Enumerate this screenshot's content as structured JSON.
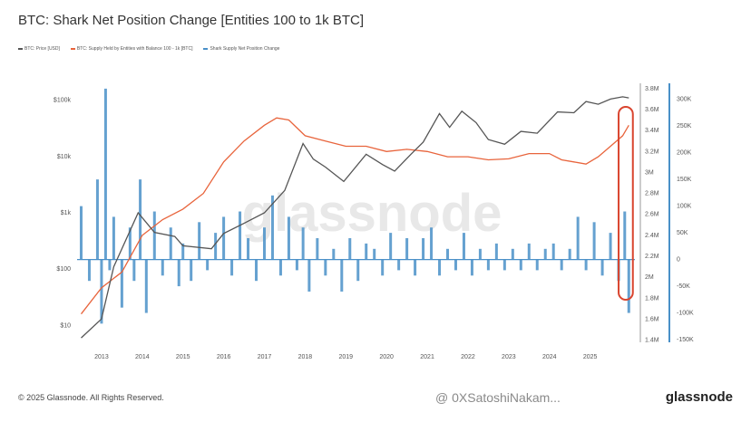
{
  "chart_data": {
    "type": "line",
    "title": "BTC: Shark Net Position Change [Entities 100 to 1k BTC]",
    "watermark": "glassnode",
    "legend": [
      {
        "name": "BTC: Price [USD]",
        "color": "#555555"
      },
      {
        "name": "BTC: Supply Held by Entities with Balance 100 - 1k [BTC]",
        "color": "#e8643c"
      },
      {
        "name": "Shark Supply Net Position Change",
        "color": "#4a90c8"
      }
    ],
    "x_ticks": [
      "2013",
      "2014",
      "2015",
      "2016",
      "2017",
      "2018",
      "2019",
      "2020",
      "2021",
      "2022",
      "2023",
      "2024",
      "2025"
    ],
    "y_left_ticks": [
      "$100k",
      "$10k",
      "$1k",
      "$100",
      "$10"
    ],
    "y_mid_ticks": [
      "3.8M",
      "3.6M",
      "3.4M",
      "3.2M",
      "3M",
      "2.8M",
      "2.6M",
      "2.4M",
      "2.2M",
      "2M",
      "1.8M",
      "1.6M",
      "1.4M"
    ],
    "y_right_ticks": [
      "300K",
      "250K",
      "200K",
      "150K",
      "100K",
      "50K",
      "0",
      "-50K",
      "-100K",
      "-150K"
    ],
    "series": [
      {
        "name": "BTC: Price [USD]",
        "x": [
          2012.5,
          2013.0,
          2013.3,
          2013.9,
          2014.3,
          2014.8,
          2015.0,
          2015.7,
          2016.0,
          2016.5,
          2017.0,
          2017.5,
          2017.95,
          2018.2,
          2018.5,
          2018.95,
          2019.5,
          2019.9,
          2020.2,
          2020.6,
          2020.9,
          2021.3,
          2021.55,
          2021.85,
          2022.2,
          2022.5,
          2022.9,
          2023.3,
          2023.7,
          2024.2,
          2024.6,
          2024.9,
          2025.2,
          2025.5,
          2025.8,
          2025.95
        ],
        "y": [
          6,
          13,
          110,
          1000,
          450,
          380,
          260,
          230,
          430,
          650,
          1000,
          2500,
          17000,
          9000,
          6500,
          3600,
          11000,
          7200,
          5500,
          11000,
          18000,
          58000,
          33000,
          64000,
          40000,
          20000,
          16500,
          28000,
          26000,
          62000,
          60000,
          95000,
          85000,
          105000,
          115000,
          110000
        ]
      },
      {
        "name": "BTC: Supply Held by Entities with Balance 100 - 1k [BTC]",
        "x": [
          2012.5,
          2013.0,
          2013.5,
          2014.0,
          2014.5,
          2015.0,
          2015.5,
          2016.0,
          2016.5,
          2017.0,
          2017.3,
          2017.6,
          2018.0,
          2018.5,
          2019.0,
          2019.5,
          2020.0,
          2020.5,
          2021.0,
          2021.5,
          2022.0,
          2022.5,
          2023.0,
          2023.5,
          2024.0,
          2024.3,
          2024.6,
          2024.9,
          2025.2,
          2025.5,
          2025.8,
          2025.95
        ],
        "y": [
          1.65,
          1.9,
          2.05,
          2.4,
          2.55,
          2.65,
          2.8,
          3.1,
          3.3,
          3.45,
          3.52,
          3.5,
          3.35,
          3.3,
          3.25,
          3.25,
          3.2,
          3.22,
          3.2,
          3.15,
          3.15,
          3.12,
          3.13,
          3.18,
          3.18,
          3.12,
          3.1,
          3.08,
          3.15,
          3.25,
          3.35,
          3.45
        ]
      },
      {
        "name": "Shark Supply Net Position Change",
        "x": [
          2012.5,
          2012.7,
          2012.9,
          2013.0,
          2013.1,
          2013.2,
          2013.3,
          2013.5,
          2013.7,
          2013.8,
          2013.95,
          2014.1,
          2014.3,
          2014.5,
          2014.7,
          2014.9,
          2015.0,
          2015.2,
          2015.4,
          2015.6,
          2015.8,
          2016.0,
          2016.2,
          2016.4,
          2016.6,
          2016.8,
          2017.0,
          2017.2,
          2017.4,
          2017.6,
          2017.8,
          2017.95,
          2018.1,
          2018.3,
          2018.5,
          2018.7,
          2018.9,
          2019.1,
          2019.3,
          2019.5,
          2019.7,
          2019.9,
          2020.1,
          2020.3,
          2020.5,
          2020.7,
          2020.9,
          2021.1,
          2021.3,
          2021.5,
          2021.7,
          2021.9,
          2022.1,
          2022.3,
          2022.5,
          2022.7,
          2022.9,
          2023.1,
          2023.3,
          2023.5,
          2023.7,
          2023.9,
          2024.1,
          2024.3,
          2024.5,
          2024.7,
          2024.9,
          2025.1,
          2025.3,
          2025.5,
          2025.7,
          2025.85,
          2025.95
        ],
        "y": [
          100000,
          -40000,
          150000,
          -120000,
          320000,
          -20000,
          80000,
          -90000,
          60000,
          -40000,
          150000,
          -100000,
          90000,
          -30000,
          60000,
          -50000,
          30000,
          -40000,
          70000,
          -20000,
          50000,
          80000,
          -30000,
          90000,
          40000,
          -40000,
          60000,
          120000,
          -30000,
          80000,
          -20000,
          60000,
          -60000,
          40000,
          -30000,
          20000,
          -60000,
          40000,
          -40000,
          30000,
          20000,
          -30000,
          50000,
          -20000,
          40000,
          -30000,
          40000,
          60000,
          -30000,
          20000,
          -20000,
          50000,
          -30000,
          20000,
          -20000,
          30000,
          -20000,
          20000,
          -20000,
          30000,
          -20000,
          20000,
          30000,
          -20000,
          20000,
          80000,
          -20000,
          70000,
          -30000,
          50000,
          -40000,
          90000,
          -100000
        ]
      }
    ],
    "x_range": [
      2012.4,
      2026.1
    ],
    "y_left_range_log": [
      5,
      200000
    ],
    "y_mid_range": [
      1.38,
      3.85
    ],
    "y_right_range": [
      -155000,
      330000
    ],
    "grid": false,
    "legend_position": "top-left",
    "highlight": {
      "x_start": 2025.7,
      "x_end": 2026.05,
      "color": "#d9442e"
    }
  },
  "footer": {
    "copyright": "© 2025 Glassnode. All Rights Reserved.",
    "brand": "glassnode",
    "credit": "@ 0XSatoshiNakam..."
  }
}
